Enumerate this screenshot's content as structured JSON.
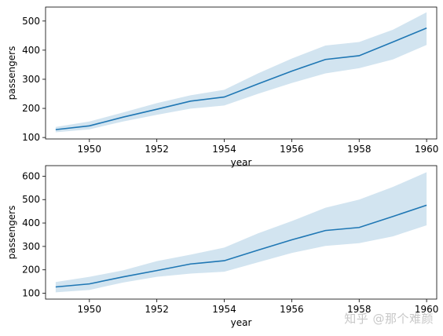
{
  "chart_data": [
    {
      "type": "line",
      "xlabel": "year",
      "ylabel": "passengers",
      "xlim": [
        1948.7,
        1960.3
      ],
      "ylim": [
        95,
        548
      ],
      "xticks": [
        1950,
        1952,
        1954,
        1956,
        1958,
        1960
      ],
      "yticks": [
        100,
        200,
        300,
        400,
        500
      ],
      "grid": false,
      "line_color": "#1f77b4",
      "band_color": "#1f77b4",
      "series": [
        {
          "x": [
            1949,
            1950,
            1951,
            1952,
            1953,
            1954,
            1955,
            1956,
            1957,
            1958,
            1959,
            1960
          ],
          "y": [
            127,
            140,
            170,
            197,
            225,
            239,
            284,
            328,
            368,
            381,
            428,
            476
          ],
          "lower": [
            118,
            128,
            155,
            178,
            199,
            210,
            250,
            287,
            320,
            338,
            368,
            418
          ],
          "upper": [
            136,
            155,
            186,
            218,
            245,
            264,
            320,
            371,
            416,
            428,
            470,
            530
          ]
        }
      ]
    },
    {
      "type": "line",
      "xlabel": "year",
      "ylabel": "passengers",
      "xlim": [
        1948.7,
        1960.3
      ],
      "ylim": [
        75,
        645
      ],
      "xticks": [
        1950,
        1952,
        1954,
        1956,
        1958,
        1960
      ],
      "yticks": [
        100,
        200,
        300,
        400,
        500,
        600
      ],
      "grid": false,
      "line_color": "#1f77b4",
      "band_color": "#1f77b4",
      "series": [
        {
          "x": [
            1949,
            1950,
            1951,
            1952,
            1953,
            1954,
            1955,
            1956,
            1957,
            1958,
            1959,
            1960
          ],
          "y": [
            127,
            140,
            170,
            197,
            225,
            239,
            284,
            328,
            368,
            381,
            428,
            476
          ],
          "lower": [
            104,
            114,
            146,
            170,
            184,
            192,
            232,
            272,
            302,
            314,
            343,
            390
          ],
          "upper": [
            148,
            170,
            198,
            237,
            265,
            295,
            356,
            408,
            465,
            500,
            554,
            617
          ]
        }
      ]
    }
  ],
  "watermark": "知乎 @那个难颜"
}
